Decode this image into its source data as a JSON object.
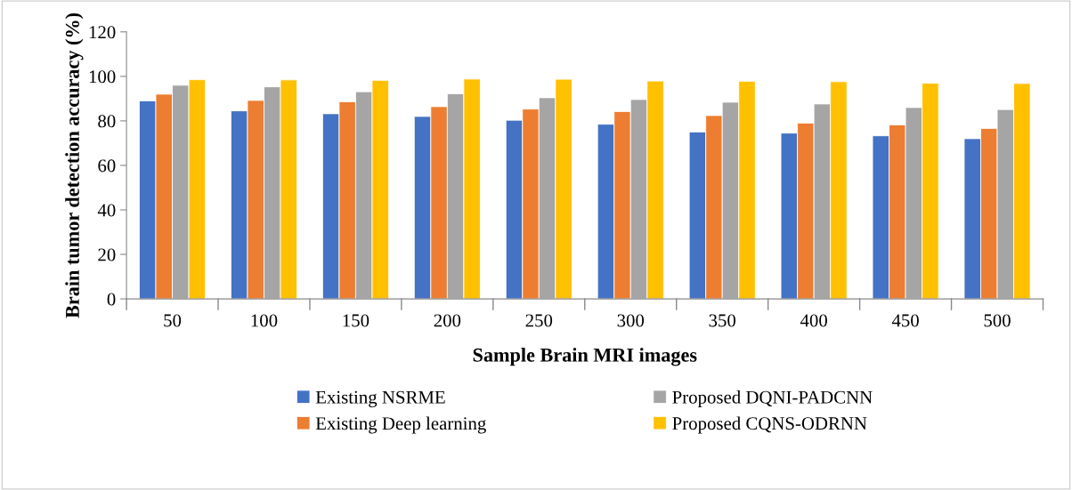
{
  "chart_data": {
    "type": "bar",
    "xlabel": "Sample Brain MRI images",
    "ylabel": "Brain tumor detection accuracy (%)",
    "categories": [
      "50",
      "100",
      "150",
      "200",
      "250",
      "300",
      "350",
      "400",
      "450",
      "500"
    ],
    "series": [
      {
        "name": "Existing NSRME",
        "color": "#4472c4",
        "values": [
          89,
          84.5,
          83.2,
          82,
          80.3,
          78.5,
          75,
          74.5,
          73.3,
          72
        ]
      },
      {
        "name": "Existing Deep learning",
        "color": "#ed7d31",
        "values": [
          92,
          89.2,
          88.6,
          86.4,
          85.3,
          84.2,
          82.4,
          79,
          78.2,
          76.6
        ]
      },
      {
        "name": "Proposed DQNI-PADCNN",
        "color": "#a5a5a5",
        "values": [
          96,
          95.3,
          93.1,
          92.2,
          90.4,
          89.6,
          88.4,
          87.6,
          86,
          85.1
        ]
      },
      {
        "name": "Proposed CQNS-ODRNN",
        "color": "#ffc000",
        "values": [
          98.5,
          98.4,
          98.2,
          98.8,
          98.7,
          97.9,
          97.8,
          97.6,
          96.9,
          96.8
        ]
      }
    ],
    "ylim": [
      0,
      120
    ],
    "yticks": [
      0,
      20,
      40,
      60,
      80,
      100,
      120
    ],
    "grid": false,
    "legend": "bottom"
  }
}
